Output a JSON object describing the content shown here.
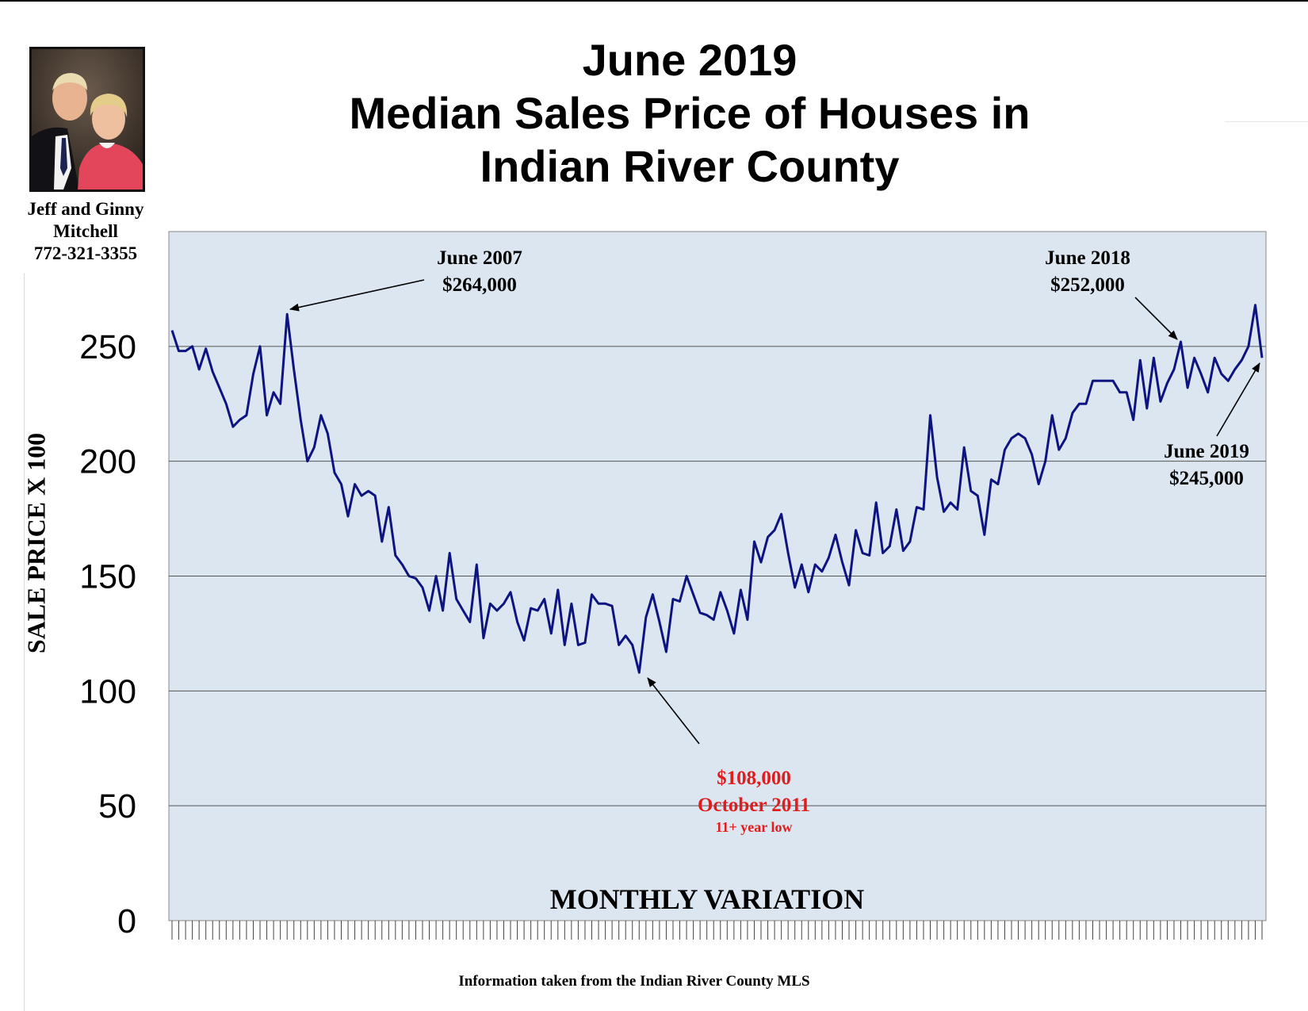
{
  "title": {
    "line1": "June 2019",
    "line2": "Median Sales Price of Houses in",
    "line3": "Indian River County"
  },
  "agent": {
    "name_line1": "Jeff and Ginny",
    "name_line2": "Mitchell",
    "phone": "772-321-3355"
  },
  "footer": {
    "source": "Information taken from the Indian River County MLS"
  },
  "colors": {
    "plot_background": "#dce6f1",
    "line": "#0d1480",
    "low_annotation": "#e01c1c"
  },
  "chart_data": {
    "type": "line",
    "title": "June 2019 Median Sales Price of Houses in Indian River County",
    "xlabel": "MONTHLY VARIATION",
    "ylabel": "SALE PRICE X 100",
    "ylim": [
      0,
      300
    ],
    "yticks": [
      0,
      50,
      100,
      150,
      200,
      250
    ],
    "grid": "horizontal",
    "x_note": "monthly, approx. Dec 2006 through Jun 2019",
    "series": [
      {
        "values": [
          257,
          248,
          248,
          250,
          240,
          249,
          239,
          232,
          225,
          215,
          218,
          220,
          238,
          250,
          220,
          230,
          225,
          264,
          240,
          218,
          200,
          206,
          220,
          212,
          195,
          190,
          176,
          190,
          185,
          187,
          185,
          165,
          180,
          159,
          155,
          150,
          149,
          145,
          135,
          150,
          135,
          160,
          140,
          135,
          130,
          155,
          123,
          138,
          135,
          138,
          143,
          130,
          122,
          136,
          135,
          140,
          125,
          144,
          120,
          138,
          120,
          121,
          142,
          138,
          138,
          137,
          120,
          124,
          120,
          108,
          132,
          142,
          130,
          117,
          140,
          139,
          150,
          142,
          134,
          133,
          131,
          143,
          135,
          125,
          144,
          131,
          165,
          156,
          167,
          170,
          177,
          160,
          145,
          155,
          143,
          155,
          152,
          158,
          168,
          156,
          146,
          170,
          160,
          159,
          182,
          160,
          163,
          179,
          161,
          165,
          180,
          179,
          220,
          193,
          178,
          182,
          179,
          206,
          187,
          185,
          168,
          192,
          190,
          205,
          210,
          212,
          210,
          203,
          190,
          200,
          220,
          205,
          210,
          221,
          225,
          225,
          235,
          235,
          235,
          235,
          230,
          230,
          218,
          244,
          223,
          245,
          226,
          234,
          240,
          252,
          232,
          245,
          238,
          230,
          245,
          238,
          235,
          240,
          244,
          250,
          268,
          245
        ]
      }
    ],
    "annotations": [
      {
        "label": "June 2007",
        "value": "$264,000"
      },
      {
        "label": "June 2018",
        "value": "$252,000"
      },
      {
        "label": "June 2019",
        "value": "$245,000"
      },
      {
        "label": "October 2011",
        "value": "$108,000",
        "note": "11+  year low"
      }
    ]
  }
}
